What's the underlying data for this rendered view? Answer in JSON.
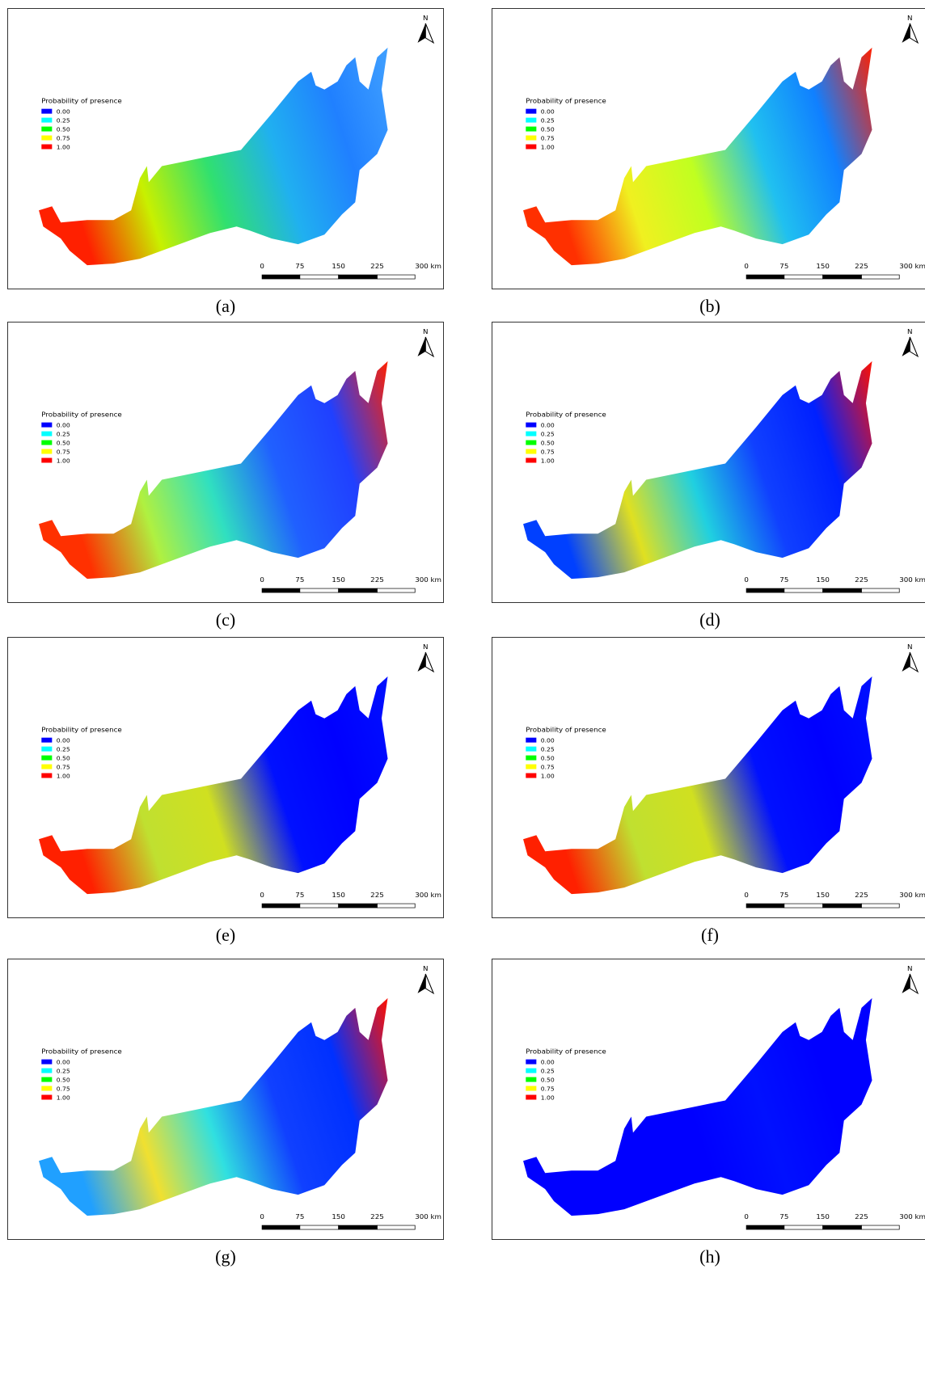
{
  "north": "N",
  "legend": {
    "title": "Probability of presence",
    "items": [
      {
        "label": "0.00",
        "color": "#0000ff"
      },
      {
        "label": "0.25",
        "color": "#00ffff"
      },
      {
        "label": "0.50",
        "color": "#00ff00"
      },
      {
        "label": "0.75",
        "color": "#ffff00"
      },
      {
        "label": "1.00",
        "color": "#ff0000"
      }
    ]
  },
  "scale_bar": {
    "labels": [
      "0",
      "75",
      "150",
      "225",
      "300 km"
    ]
  },
  "panels": [
    {
      "caption": "(a)"
    },
    {
      "caption": "(b)"
    },
    {
      "caption": "(c)"
    },
    {
      "caption": "(d)"
    },
    {
      "caption": "(e)"
    },
    {
      "caption": "(f)"
    },
    {
      "caption": "(g)"
    },
    {
      "caption": "(h)"
    }
  ]
}
